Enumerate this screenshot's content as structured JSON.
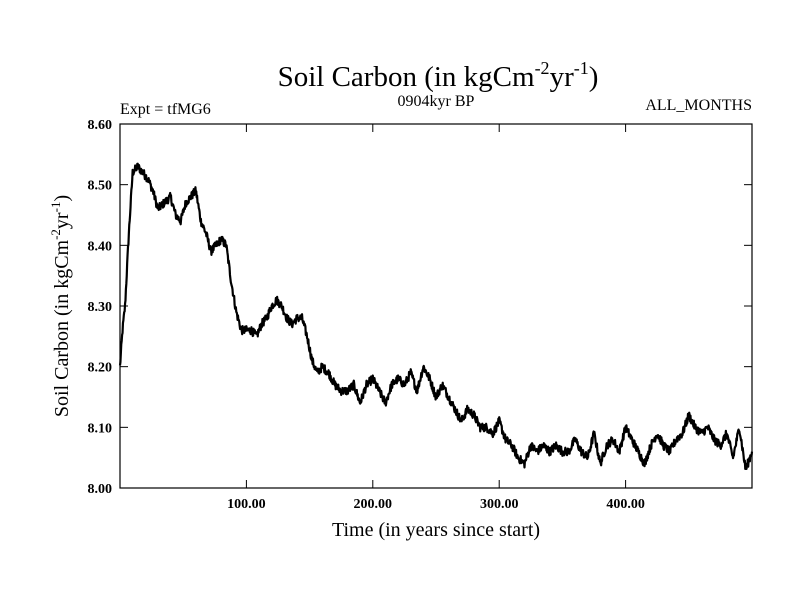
{
  "chart_data": {
    "type": "line",
    "title": {
      "main": "Soil Carbon (in kgCm",
      "sup1": "-2",
      "mid": "yr",
      "sup2": "-1",
      "end": ")"
    },
    "subtitle_left": "Expt = tfMG6",
    "subtitle_center": "0904kyr BP",
    "subtitle_right": "ALL_MONTHS",
    "xlabel": "Time (in years since start)",
    "ylabel": {
      "main": "Soil Carbon (in kgCm",
      "sup1": "-2",
      "mid": "yr",
      "sup2": "-1",
      "end": ")"
    },
    "xlim": [
      0,
      500
    ],
    "ylim": [
      8.0,
      8.6
    ],
    "x_ticks": [
      100,
      200,
      300,
      400
    ],
    "x_tick_labels": [
      "100.00",
      "200.00",
      "300.00",
      "400.00"
    ],
    "y_ticks": [
      8.0,
      8.1,
      8.2,
      8.3,
      8.4,
      8.5,
      8.6
    ],
    "y_tick_labels": [
      "8.00",
      "8.10",
      "8.20",
      "8.30",
      "8.40",
      "8.50",
      "8.60"
    ],
    "series": [
      {
        "name": "Soil Carbon",
        "x": [
          0,
          2,
          4,
          7,
          10,
          14,
          18,
          22,
          26,
          30,
          35,
          40,
          44,
          48,
          52,
          56,
          60,
          64,
          68,
          72,
          76,
          80,
          84,
          88,
          92,
          96,
          100,
          104,
          108,
          112,
          116,
          120,
          124,
          128,
          132,
          136,
          140,
          144,
          148,
          152,
          156,
          160,
          165,
          170,
          175,
          180,
          185,
          190,
          195,
          200,
          205,
          210,
          215,
          220,
          225,
          230,
          235,
          240,
          245,
          250,
          255,
          260,
          265,
          270,
          275,
          280,
          285,
          290,
          295,
          300,
          305,
          310,
          315,
          320,
          325,
          330,
          335,
          340,
          345,
          350,
          355,
          360,
          365,
          370,
          375,
          380,
          385,
          390,
          395,
          400,
          405,
          410,
          415,
          420,
          425,
          430,
          435,
          440,
          445,
          450,
          455,
          460,
          465,
          470,
          475,
          480,
          485,
          490,
          495,
          500
        ],
        "y": [
          8.2,
          8.26,
          8.3,
          8.42,
          8.52,
          8.53,
          8.52,
          8.51,
          8.49,
          8.46,
          8.47,
          8.48,
          8.45,
          8.44,
          8.47,
          8.48,
          8.49,
          8.44,
          8.42,
          8.39,
          8.4,
          8.41,
          8.4,
          8.34,
          8.29,
          8.26,
          8.26,
          8.26,
          8.25,
          8.27,
          8.28,
          8.3,
          8.31,
          8.3,
          8.28,
          8.27,
          8.28,
          8.28,
          8.25,
          8.21,
          8.19,
          8.2,
          8.19,
          8.17,
          8.16,
          8.16,
          8.17,
          8.14,
          8.17,
          8.18,
          8.16,
          8.14,
          8.17,
          8.18,
          8.17,
          8.19,
          8.16,
          8.2,
          8.18,
          8.15,
          8.17,
          8.15,
          8.13,
          8.11,
          8.13,
          8.12,
          8.1,
          8.1,
          8.09,
          8.11,
          8.08,
          8.07,
          8.05,
          8.04,
          8.07,
          8.06,
          8.07,
          8.06,
          8.07,
          8.06,
          8.06,
          8.08,
          8.06,
          8.05,
          8.09,
          8.04,
          8.07,
          8.08,
          8.06,
          8.1,
          8.08,
          8.06,
          8.04,
          8.07,
          8.09,
          8.07,
          8.06,
          8.08,
          8.09,
          8.12,
          8.1,
          8.09,
          8.1,
          8.08,
          8.07,
          8.09,
          8.05,
          8.1,
          8.03,
          8.06
        ]
      }
    ]
  }
}
